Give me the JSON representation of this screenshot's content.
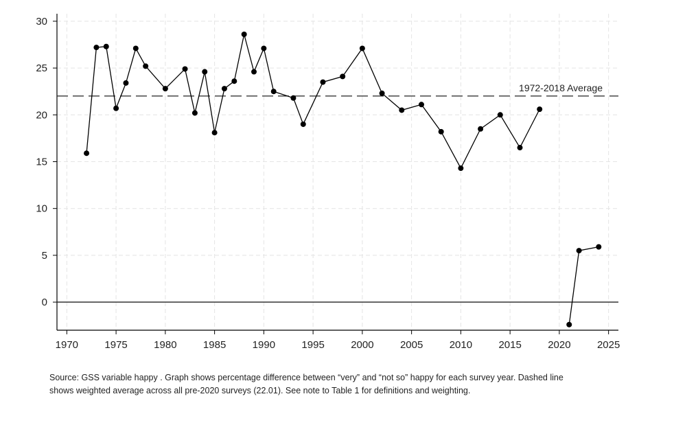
{
  "chart_data": {
    "type": "line",
    "title": "",
    "xlabel": "",
    "ylabel": "",
    "xlim": [
      1969,
      2026
    ],
    "ylim": [
      -3,
      30.8
    ],
    "x_ticks": [
      "1970",
      "1975",
      "1980",
      "1985",
      "1990",
      "1995",
      "2000",
      "2005",
      "2010",
      "2015",
      "2020",
      "2025"
    ],
    "y_ticks": [
      "0",
      "5",
      "10",
      "15",
      "20",
      "25",
      "30"
    ],
    "grid": true,
    "series": [
      {
        "name": "",
        "color": "#000000",
        "points": [
          {
            "x": 1972,
            "y": 15.9
          },
          {
            "x": 1973,
            "y": 27.2
          },
          {
            "x": 1974,
            "y": 27.3
          },
          {
            "x": 1975,
            "y": 20.7
          },
          {
            "x": 1976,
            "y": 23.4
          },
          {
            "x": 1977,
            "y": 27.1
          },
          {
            "x": 1978,
            "y": 25.2
          },
          {
            "x": 1980,
            "y": 22.8
          },
          {
            "x": 1982,
            "y": 24.9
          },
          {
            "x": 1983,
            "y": 20.2
          },
          {
            "x": 1984,
            "y": 24.6
          },
          {
            "x": 1985,
            "y": 18.1
          },
          {
            "x": 1986,
            "y": 22.8
          },
          {
            "x": 1987,
            "y": 23.6
          },
          {
            "x": 1988,
            "y": 28.6
          },
          {
            "x": 1989,
            "y": 24.6
          },
          {
            "x": 1990,
            "y": 27.1
          },
          {
            "x": 1991,
            "y": 22.5
          },
          {
            "x": 1993,
            "y": 21.8
          },
          {
            "x": 1994,
            "y": 19.0
          },
          {
            "x": 1996,
            "y": 23.5
          },
          {
            "x": 1998,
            "y": 24.1
          },
          {
            "x": 2000,
            "y": 27.1
          },
          {
            "x": 2002,
            "y": 22.3
          },
          {
            "x": 2004,
            "y": 20.5
          },
          {
            "x": 2006,
            "y": 21.1
          },
          {
            "x": 2008,
            "y": 18.2
          },
          {
            "x": 2010,
            "y": 14.3
          },
          {
            "x": 2012,
            "y": 18.5
          },
          {
            "x": 2014,
            "y": 20.0
          },
          {
            "x": 2016,
            "y": 16.5
          },
          {
            "x": 2018,
            "y": 20.6
          }
        ]
      },
      {
        "name": "",
        "color": "#000000",
        "points": [
          {
            "x": 2021,
            "y": -2.4
          },
          {
            "x": 2022,
            "y": 5.5
          },
          {
            "x": 2024,
            "y": 5.9
          }
        ]
      }
    ],
    "reference_lines": [
      {
        "y": 22.01,
        "style": "dashed",
        "label": "1972-2018 Average"
      },
      {
        "y": 0,
        "style": "solid",
        "label": ""
      }
    ]
  },
  "caption": {
    "line1": "Source:  GSS variable happy . Graph shows percentage difference between “very” and “not so” happy for each survey year. Dashed line",
    "line2": "shows weighted average across all pre-2020 surveys (22.01).  See note to Table 1 for definitions and weighting."
  }
}
